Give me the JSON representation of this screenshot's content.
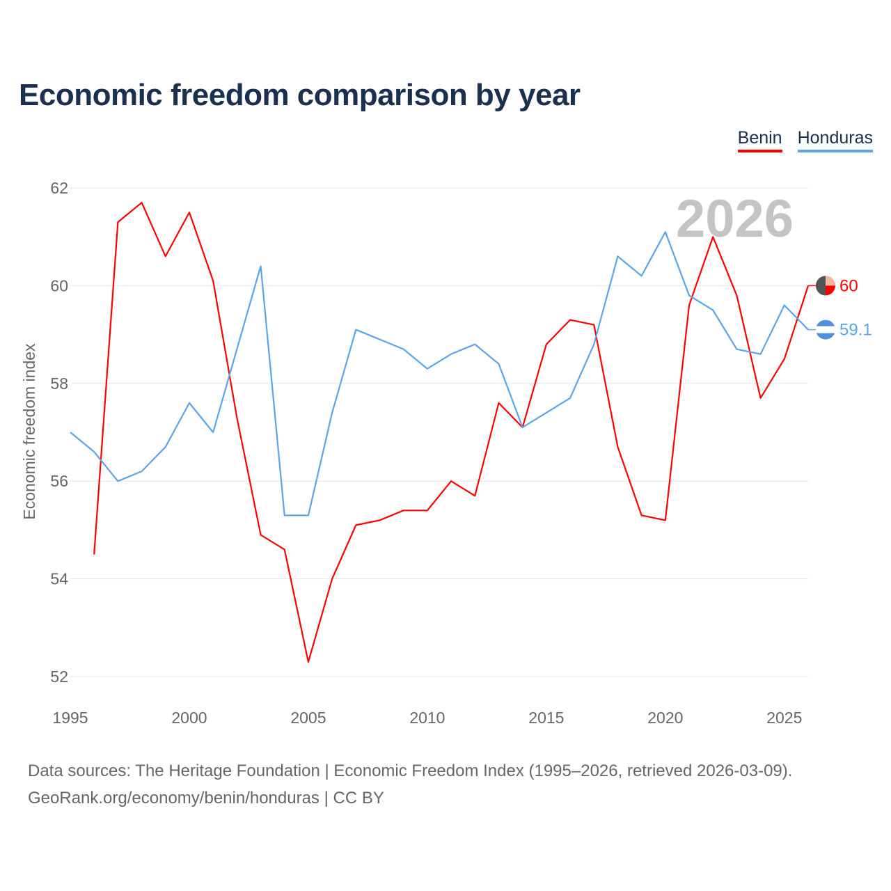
{
  "title": "Economic freedom comparison by year",
  "legend": [
    {
      "name": "Benin",
      "color": "#ff0000"
    },
    {
      "name": "Honduras",
      "color": "#5ba4e8"
    }
  ],
  "source_lines": [
    "Data sources: The Heritage Foundation | Economic Freedom Index (1995–2026, retrieved 2026-03-09).",
    "GeoRank.org/economy/benin/honduras | CC BY"
  ],
  "chart_data": {
    "type": "line",
    "title": "Economic freedom comparison by year",
    "xlabel": "",
    "ylabel": "Economic freedom index",
    "xlim": [
      1995,
      2026
    ],
    "ylim": [
      52,
      62
    ],
    "xticks": [
      "1995",
      "2000",
      "2005",
      "2010",
      "2015",
      "2020",
      "2025"
    ],
    "yticks": [
      "52",
      "54",
      "56",
      "58",
      "60",
      "62"
    ],
    "grid": true,
    "legend_position": "top-right",
    "year_annotation": "2026",
    "series": [
      {
        "name": "Benin",
        "color": "#ff0000",
        "end_label": "60",
        "x": [
          1996,
          1997,
          1998,
          1999,
          2000,
          2001,
          2002,
          2003,
          2004,
          2005,
          2006,
          2007,
          2008,
          2009,
          2010,
          2011,
          2012,
          2013,
          2014,
          2015,
          2016,
          2017,
          2018,
          2019,
          2020,
          2021,
          2022,
          2023,
          2024,
          2025,
          2026
        ],
        "values": [
          54.5,
          61.3,
          61.7,
          60.6,
          61.5,
          60.1,
          57.3,
          54.9,
          54.6,
          52.3,
          54.0,
          55.1,
          55.2,
          55.4,
          55.4,
          56.0,
          55.7,
          57.6,
          57.1,
          58.8,
          59.3,
          59.2,
          56.7,
          55.3,
          55.2,
          59.6,
          61.0,
          59.8,
          57.7,
          58.5,
          60.0
        ]
      },
      {
        "name": "Honduras",
        "color": "#5ba4e8",
        "end_label": "59.1",
        "x": [
          1995,
          1996,
          1997,
          1998,
          1999,
          2000,
          2001,
          2002,
          2003,
          2004,
          2005,
          2006,
          2007,
          2008,
          2009,
          2010,
          2011,
          2012,
          2013,
          2014,
          2015,
          2016,
          2017,
          2018,
          2019,
          2020,
          2021,
          2022,
          2023,
          2024,
          2025,
          2026
        ],
        "values": [
          57.0,
          56.6,
          56.0,
          56.2,
          56.7,
          57.6,
          57.0,
          58.7,
          60.4,
          55.3,
          55.3,
          57.4,
          59.1,
          58.9,
          58.7,
          58.3,
          58.6,
          58.8,
          58.4,
          57.1,
          57.4,
          57.7,
          58.8,
          60.6,
          60.2,
          61.1,
          59.8,
          59.5,
          58.7,
          58.6,
          59.6,
          59.1
        ]
      }
    ]
  }
}
